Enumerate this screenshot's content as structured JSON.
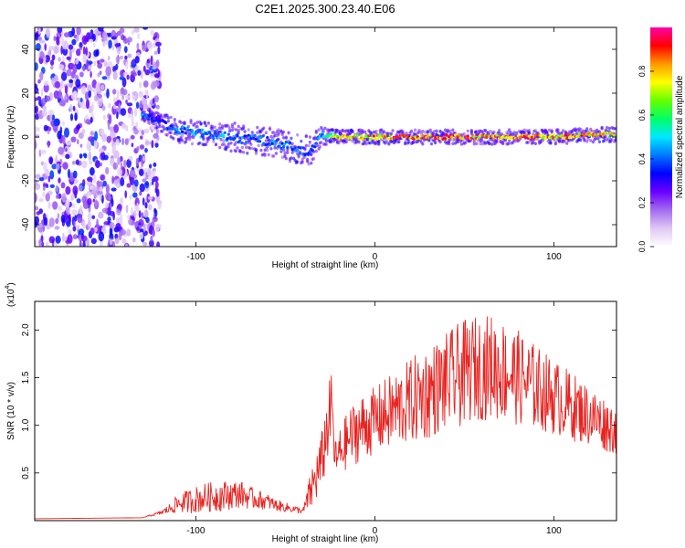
{
  "figure": {
    "title": "C2E1.2025.300.23.40.E06"
  },
  "colorbar": {
    "label": "Normalized spectral amplitude",
    "ticks": [
      "0.0",
      "0.2",
      "0.4",
      "0.6",
      "0.8"
    ],
    "tick_values": [
      0,
      0.2,
      0.4,
      0.6,
      0.8
    ],
    "range": [
      0,
      1
    ],
    "colormap": [
      "#ffffff",
      "#e0c8f4",
      "#a36bef",
      "#6a00ff",
      "#0000ff",
      "#0078ff",
      "#00e8ff",
      "#00ff66",
      "#66ff00",
      "#ffff00",
      "#ff9900",
      "#ff0000",
      "#ff00aa"
    ]
  },
  "chart_data": [
    {
      "type": "heatmap",
      "xlabel": "Height of straight line (km)",
      "ylabel": "Frequency (Hz)",
      "xlim": [
        -190,
        135
      ],
      "ylim": [
        -50,
        50
      ],
      "xticks": [
        -100,
        0,
        100
      ],
      "yticks": [
        -40,
        -20,
        0,
        20,
        40
      ],
      "xtick_labels": [
        "-100",
        "0",
        "100"
      ],
      "ytick_labels": [
        "-40",
        "-20",
        "0",
        "20",
        "40"
      ],
      "noise_region_x": [
        -190,
        -120
      ],
      "ridge": {
        "x": [
          -130,
          -120,
          -110,
          -100,
          -90,
          -80,
          -70,
          -60,
          -50,
          -40,
          -35,
          -30,
          -20,
          -10,
          0,
          20,
          40,
          60,
          80,
          100,
          120,
          135
        ],
        "freq": [
          10,
          7,
          3,
          2,
          1,
          0,
          -1,
          -2,
          -4,
          -6,
          -6,
          1,
          0,
          0,
          0,
          0,
          0,
          0,
          0,
          0,
          1,
          1
        ],
        "amplitude": [
          0.45,
          0.35,
          0.42,
          0.48,
          0.5,
          0.45,
          0.45,
          0.42,
          0.45,
          0.4,
          0.38,
          0.5,
          0.8,
          0.82,
          0.85,
          0.9,
          0.92,
          0.9,
          0.88,
          0.86,
          0.85,
          0.8
        ],
        "spread_hz": [
          2,
          4,
          5,
          5,
          5,
          6,
          6,
          6,
          6,
          6,
          6,
          4,
          3,
          3,
          3,
          3,
          3,
          3,
          3,
          3,
          3,
          3
        ]
      }
    },
    {
      "type": "line",
      "xlabel": "Height of straight line (km)",
      "ylabel": "SNR (10 * v/v)",
      "y_multiplier": "(x10^4)",
      "multiplier_base": "(x10",
      "multiplier_exp": "4",
      "xlim": [
        -190,
        135
      ],
      "ylim": [
        0,
        2.3
      ],
      "xticks": [
        -100,
        0,
        100
      ],
      "yticks": [
        0.5,
        1.0,
        1.5,
        2.0
      ],
      "xtick_labels": [
        "-100",
        "0",
        "100"
      ],
      "ytick_labels": [
        "0.5",
        "1.0",
        "1.5",
        "2.0"
      ],
      "color": "#e8221f",
      "series": [
        {
          "x": [
            -190,
            -130,
            -120,
            -115,
            -110,
            -105,
            -100,
            -95,
            -90,
            -85,
            -80,
            -75,
            -70,
            -65,
            -60,
            -55,
            -50,
            -45,
            -40,
            -35,
            -30,
            -28,
            -26,
            -24,
            -22,
            -20,
            -15,
            -10,
            -5,
            0,
            5,
            10,
            15,
            20,
            25,
            30,
            35,
            40,
            45,
            50,
            55,
            60,
            65,
            70,
            75,
            80,
            85,
            90,
            95,
            100,
            105,
            110,
            115,
            120,
            125,
            130,
            135
          ],
          "y": [
            0.02,
            0.03,
            0.08,
            0.12,
            0.18,
            0.2,
            0.22,
            0.24,
            0.25,
            0.26,
            0.27,
            0.28,
            0.24,
            0.22,
            0.2,
            0.16,
            0.14,
            0.12,
            0.1,
            0.35,
            0.6,
            0.8,
            1.05,
            1.2,
            0.6,
            0.7,
            0.85,
            0.95,
            1.0,
            1.05,
            1.1,
            1.15,
            1.2,
            1.25,
            1.3,
            1.35,
            1.4,
            1.45,
            1.5,
            1.55,
            1.6,
            1.6,
            1.62,
            1.58,
            1.55,
            1.5,
            1.45,
            1.4,
            1.35,
            1.3,
            1.25,
            1.2,
            1.15,
            1.1,
            1.05,
            1.0,
            0.95
          ],
          "fluctuation": [
            0,
            0,
            0.02,
            0.05,
            0.1,
            0.12,
            0.14,
            0.15,
            0.16,
            0.16,
            0.15,
            0.14,
            0.12,
            0.1,
            0.08,
            0.06,
            0.05,
            0.04,
            0.03,
            0.25,
            0.3,
            0.35,
            0.4,
            0.35,
            0.25,
            0.25,
            0.3,
            0.35,
            0.35,
            0.35,
            0.38,
            0.4,
            0.42,
            0.45,
            0.48,
            0.5,
            0.5,
            0.52,
            0.55,
            0.55,
            0.55,
            0.55,
            0.55,
            0.55,
            0.52,
            0.5,
            0.48,
            0.45,
            0.42,
            0.4,
            0.38,
            0.36,
            0.34,
            0.32,
            0.3,
            0.28,
            0.26
          ]
        }
      ]
    }
  ]
}
